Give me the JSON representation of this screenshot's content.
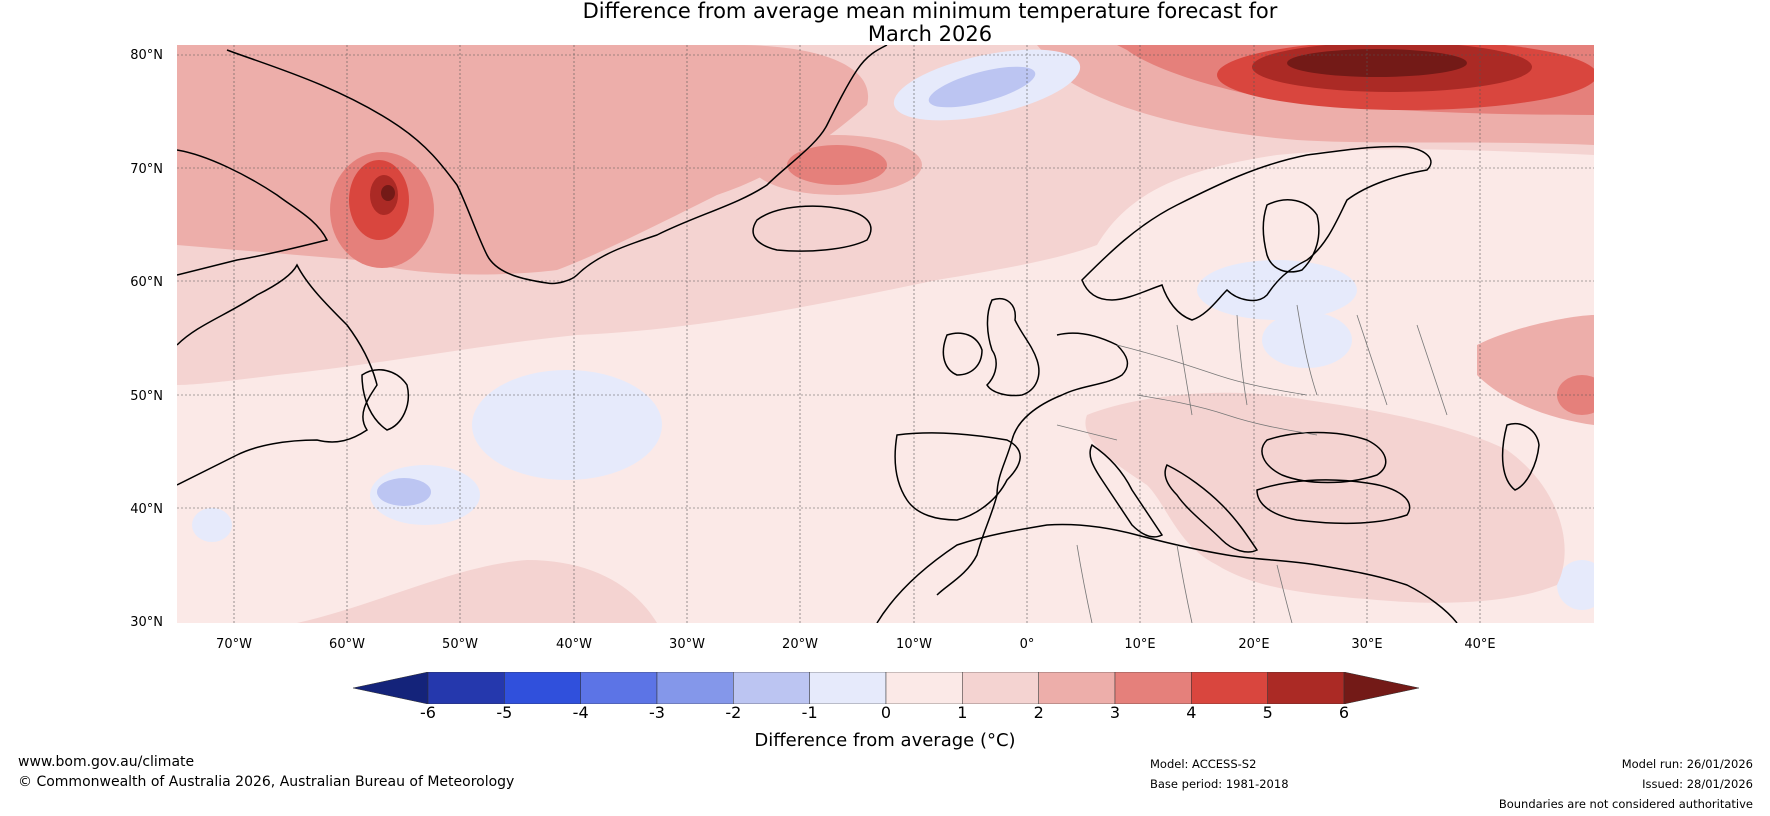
{
  "title": {
    "line1": "Difference from average mean minimum temperature forecast for",
    "line2": "March 2026"
  },
  "map": {
    "lat_labels": [
      "80°N",
      "70°N",
      "60°N",
      "50°N",
      "40°N",
      "30°N"
    ],
    "lon_labels": [
      "70°W",
      "60°W",
      "50°W",
      "40°W",
      "30°W",
      "20°W",
      "10°W",
      "0°",
      "10°E",
      "20°E",
      "30°E",
      "40°E"
    ],
    "extent": {
      "lon_min": -75,
      "lon_max": 50,
      "lat_min": 30,
      "lat_max": 81
    }
  },
  "colorbar": {
    "ticks": [
      "-6",
      "-5",
      "-4",
      "-3",
      "-2",
      "-1",
      "0",
      "1",
      "2",
      "3",
      "4",
      "5",
      "6"
    ],
    "colors": [
      "#14237a",
      "#2538ad",
      "#3050dc",
      "#5c74e6",
      "#8497ea",
      "#bcc5f2",
      "#e6eafb",
      "#fbe9e7",
      "#f4d3d1",
      "#edaeaa",
      "#e5807b",
      "#d9463e",
      "#ab2a25",
      "#731a17"
    ],
    "label": "Difference from average (°C)"
  },
  "footer": {
    "url": "www.bom.gov.au/climate",
    "copyright": "© Commonwealth of Australia 2026, Australian Bureau of Meteorology",
    "model": "Model: ACCESS-S2",
    "base_period": "Base period: 1981-2018",
    "model_run": "Model run: 26/01/2026",
    "issued": "Issued: 28/01/2026",
    "disclaimer": "Boundaries are not considered authoritative"
  }
}
